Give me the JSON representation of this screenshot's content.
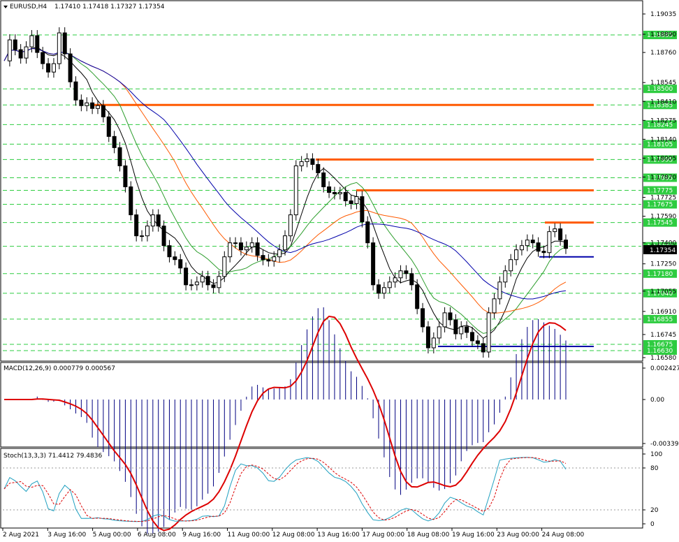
{
  "chart_data": {
    "type": "candlestick",
    "symbol": "EURUSD,H4",
    "ohlc_text": "1.17410 1.17418 1.17327 1.17354",
    "last_price": "1.17354",
    "main": {
      "price_ticks": [
        "1.19035",
        "1.18890",
        "1.18760",
        "1.18545",
        "1.18410",
        "1.18275",
        "1.18140",
        "1.18005",
        "1.17870",
        "1.17725",
        "1.17590",
        "1.17400",
        "1.17250",
        "1.17055",
        "1.16910",
        "1.16745",
        "1.16580"
      ],
      "hlines": [
        {
          "label": "1.18885",
          "color": "#2ecc40"
        },
        {
          "label": "1.18500",
          "color": "#2ecc40"
        },
        {
          "label": "1.18385",
          "color": "#2ecc40"
        },
        {
          "label": "1.18245",
          "color": "#2ecc40"
        },
        {
          "label": "1.18105",
          "color": "#2ecc40"
        },
        {
          "label": "1.17995",
          "color": "#2ecc40"
        },
        {
          "label": "1.17865",
          "color": "#2ecc40"
        },
        {
          "label": "1.17775",
          "color": "#2ecc40"
        },
        {
          "label": "1.17675",
          "color": "#2ecc40"
        },
        {
          "label": "1.17545",
          "color": "#2ecc40"
        },
        {
          "label": "1.17375",
          "color": "#2ecc40"
        },
        {
          "label": "1.17180",
          "color": "#2ecc40"
        },
        {
          "label": "1.17040",
          "color": "#2ecc40"
        },
        {
          "label": "1.16855",
          "color": "#2ecc40"
        },
        {
          "label": "1.16675",
          "color": "#2ecc40"
        },
        {
          "label": "1.16630",
          "color": "#2ecc40"
        }
      ],
      "levels": [
        {
          "price": 1.18385,
          "color": "#ff5a00",
          "x0": "5 Aug 00:00",
          "x1": "end"
        },
        {
          "price": 1.17995,
          "color": "#ff5a00",
          "x0": "13 Aug 16:00",
          "x1": "end"
        },
        {
          "price": 1.17775,
          "color": "#ff5a00",
          "x0": "17 Aug 00:00",
          "x1": "end"
        },
        {
          "price": 1.17545,
          "color": "#ff5a00",
          "x0": "24 Aug 08:00",
          "x1": "end"
        },
        {
          "price": 1.173,
          "color": "#0000aa",
          "x0": "24 Aug 00:00",
          "x1": "end"
        },
        {
          "price": 1.1666,
          "color": "#0000aa",
          "x0": "18 Aug 08:00",
          "x1": "end"
        }
      ],
      "ma_colors": {
        "fast": "#000000",
        "mid": "#2e9e2e",
        "slow": "#ff5a00",
        "slowest": "#0000aa"
      }
    },
    "macd": {
      "label": "MACD(12,26,9) 0.000779 0.000567",
      "ticks": [
        "0.002427",
        "0.00",
        "-0.003399"
      ],
      "hist_color": "#000080",
      "signal_color": "#dd0000"
    },
    "stoch": {
      "label": "Stoch(13,3,3) 71.4412 79.4836",
      "ticks": [
        "100",
        "80",
        "20",
        "0"
      ],
      "main_color": "#20a0c0",
      "signal_color": "#dd0000"
    },
    "time_labels": [
      "2 Aug 2021",
      "3 Aug 16:00",
      "5 Aug 00:00",
      "6 Aug 08:00",
      "9 Aug 16:00",
      "11 Aug 00:00",
      "12 Aug 08:00",
      "13 Aug 16:00",
      "17 Aug 00:00",
      "18 Aug 08:00",
      "19 Aug 16:00",
      "23 Aug 00:00",
      "24 Aug 08:00"
    ]
  }
}
